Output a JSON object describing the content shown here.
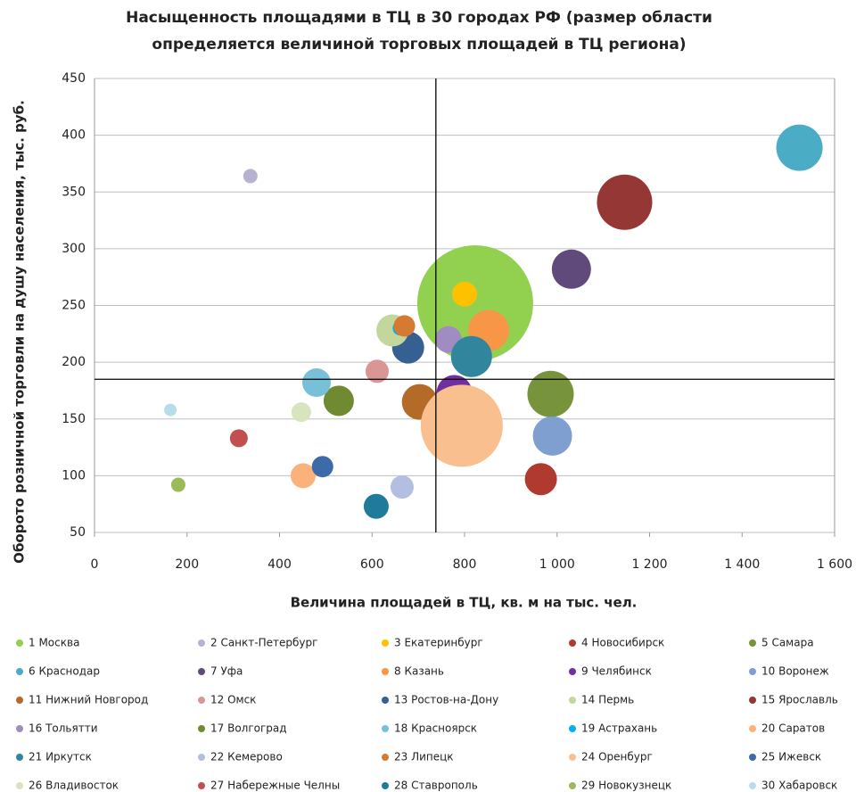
{
  "chart_data": {
    "type": "bubble",
    "title": [
      "Насыщенность площадями в ТЦ в 30 городах РФ (размер области",
      "определяется величиной торговых площадей в ТЦ региона)"
    ],
    "x_label": "Величина площадей в ТЦ, кв. м на  тыс. чел.",
    "y_label": "Оборото розничной  торговли на душу населения, тыс. руб.",
    "xlim": [
      0,
      1600
    ],
    "xticks": [
      0,
      200,
      400,
      600,
      800,
      {
        "value": 1000,
        "label": "1 000"
      },
      {
        "value": 1200,
        "label": "1 200"
      },
      {
        "value": 1400,
        "label": "1 400"
      },
      {
        "value": 1600,
        "label": "1 600"
      }
    ],
    "ylim": [
      50,
      450
    ],
    "yticks": [
      50,
      100,
      150,
      200,
      250,
      300,
      350,
      400,
      450
    ],
    "grid": true,
    "reference_lines": {
      "x": 738,
      "y": 185
    },
    "legend": "bottom",
    "series": [
      {
        "name": "1 Москва",
        "color": "#92d050",
        "x": 823,
        "y": 252,
        "size": 4225
      },
      {
        "name": "2 Санкт-Петербург",
        "color": "#b8b2d2",
        "x": 337,
        "y": 364,
        "size": 64
      },
      {
        "name": "3 Екатеринбург",
        "color": "#ffc000",
        "x": 800,
        "y": 260,
        "size": 196
      },
      {
        "name": "4 Новосибирск",
        "color": "#b03a2e",
        "x": 965,
        "y": 97,
        "size": 324
      },
      {
        "name": "5 Самара",
        "color": "#77933c",
        "x": 986,
        "y": 172,
        "size": 676
      },
      {
        "name": "6 Краснодар",
        "color": "#4bacc6",
        "x": 1524,
        "y": 389,
        "size": 676
      },
      {
        "name": "7 Уфа",
        "color": "#604a7b",
        "x": 1031,
        "y": 282,
        "size": 484
      },
      {
        "name": "8 Казань",
        "color": "#f79646",
        "x": 852,
        "y": 228,
        "size": 529
      },
      {
        "name": "9 Челябинск",
        "color": "#7030a0",
        "x": 778,
        "y": 173,
        "size": 400
      },
      {
        "name": "10 Воронеж",
        "color": "#7f9fd0",
        "x": 990,
        "y": 135,
        "size": 484
      },
      {
        "name": "11 Нижний Новгород",
        "color": "#b46b28",
        "x": 703,
        "y": 165,
        "size": 400
      },
      {
        "name": "12 Омск",
        "color": "#d99694",
        "x": 611,
        "y": 192,
        "size": 169
      },
      {
        "name": "13 Ростов-на-Дону",
        "color": "#376092",
        "x": 678,
        "y": 213,
        "size": 324
      },
      {
        "name": "14 Пермь",
        "color": "#c3d69b",
        "x": 644,
        "y": 228,
        "size": 324
      },
      {
        "name": "15 Ярославль",
        "color": "#953735",
        "x": 1146,
        "y": 341,
        "size": 961
      },
      {
        "name": "16 Тольятти",
        "color": "#a08cc0",
        "x": 765,
        "y": 220,
        "size": 225
      },
      {
        "name": "17 Волгоград",
        "color": "#6f8a30",
        "x": 528,
        "y": 166,
        "size": 289
      },
      {
        "name": "18 Красноярск",
        "color": "#78c0d8",
        "x": 480,
        "y": 182,
        "size": 256
      },
      {
        "name": "19 Астрахань",
        "color": "#00b0f0",
        "x": 660,
        "y": 230,
        "size": 64
      },
      {
        "name": "20 Саратов",
        "color": "#fab27a",
        "x": 451,
        "y": 100,
        "size": 196
      },
      {
        "name": "21 Иркутск",
        "color": "#31859c",
        "x": 815,
        "y": 205,
        "size": 529
      },
      {
        "name": "22 Кемерово",
        "color": "#b3bfe0",
        "x": 665,
        "y": 90,
        "size": 169
      },
      {
        "name": "23 Липецк",
        "color": "#d57a30",
        "x": 670,
        "y": 232,
        "size": 144
      },
      {
        "name": "24 Оренбург",
        "color": "#fabf8f",
        "x": 794,
        "y": 144,
        "size": 2116
      },
      {
        "name": "25 Ижевск",
        "color": "#3d6aa8",
        "x": 493,
        "y": 108,
        "size": 144
      },
      {
        "name": "26 Владивосток",
        "color": "#d7e4bd",
        "x": 447,
        "y": 156,
        "size": 121
      },
      {
        "name": "27 Набережные Челны",
        "color": "#c0504d",
        "x": 312,
        "y": 133,
        "size": 100
      },
      {
        "name": "28 Ставрополь",
        "color": "#1f7a9c",
        "x": 609,
        "y": 73,
        "size": 196
      },
      {
        "name": "29 Новокузнецк",
        "color": "#9bbb59",
        "x": 181,
        "y": 92,
        "size": 64
      },
      {
        "name": "30 Хабаровск",
        "color": "#b7dee8",
        "x": 164,
        "y": 158,
        "size": 49
      }
    ]
  }
}
